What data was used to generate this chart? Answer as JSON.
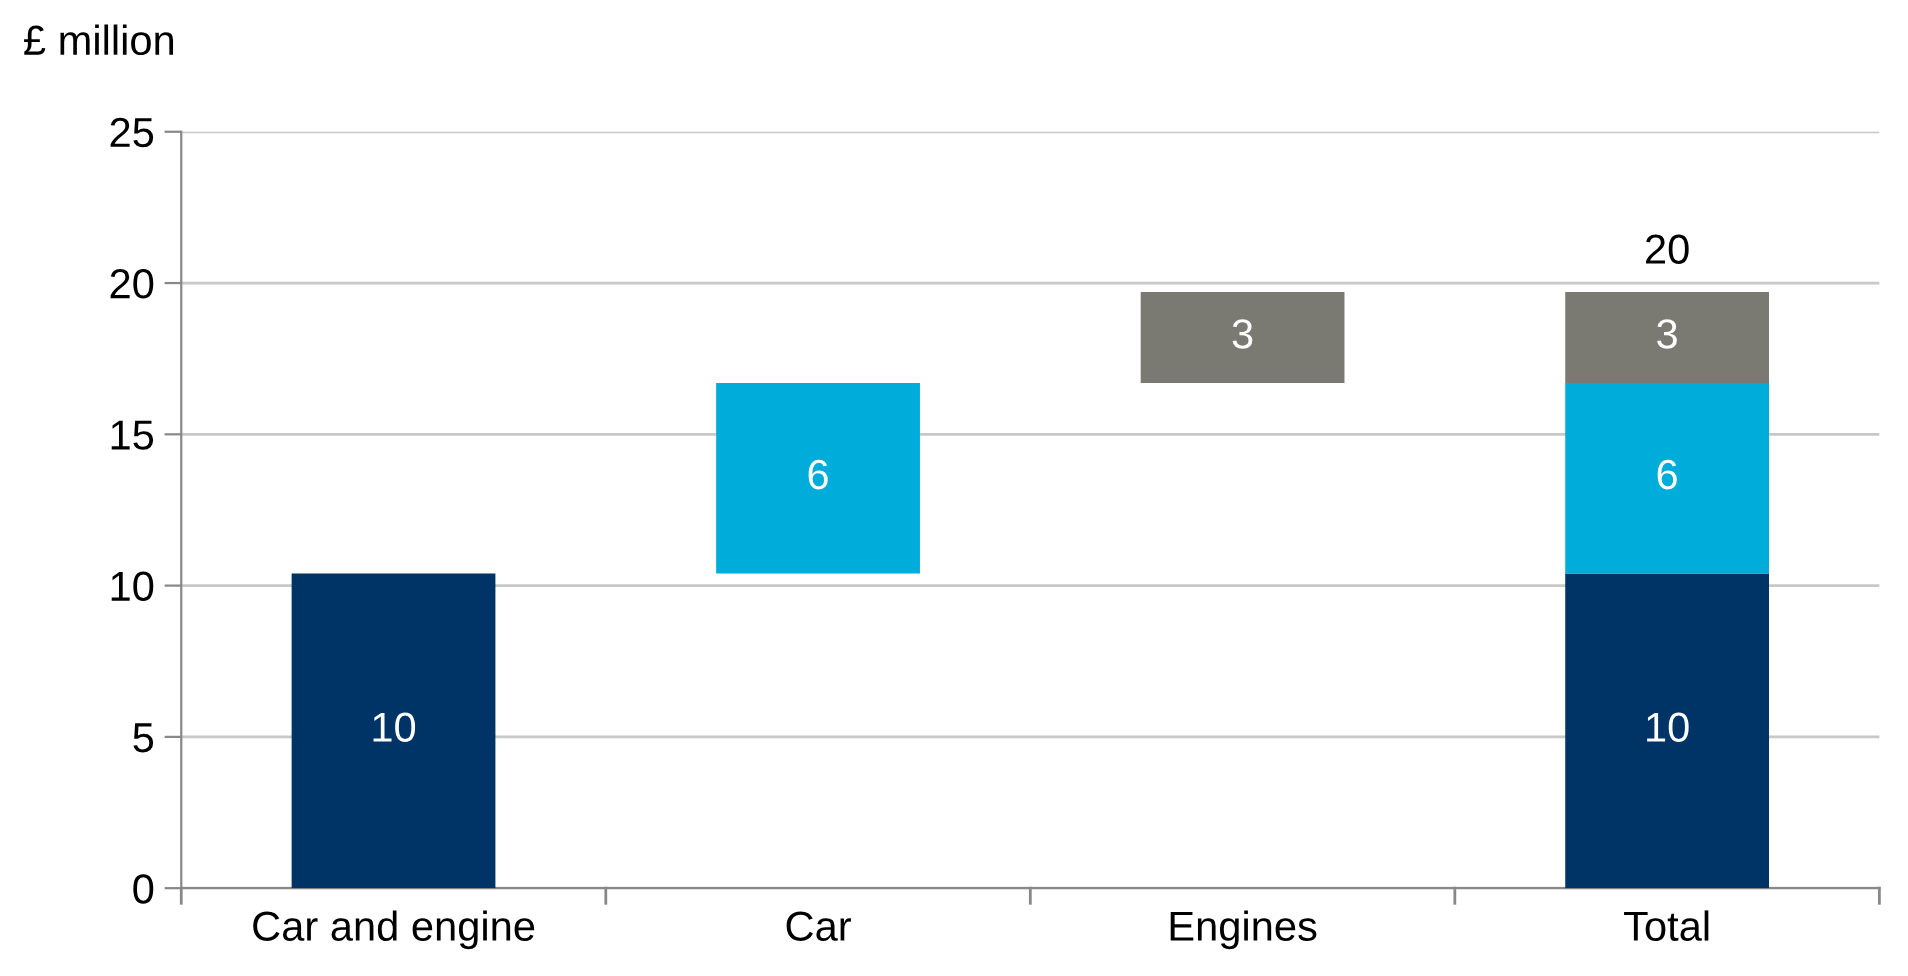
{
  "chart_data": {
    "type": "bar",
    "ylabel": "£ million",
    "categories": [
      "Car and engine",
      "Car",
      "Engines",
      "Total"
    ],
    "series": [
      {
        "color": "#003366",
        "values": [
          10.4,
          null,
          null,
          10.4
        ],
        "base": [
          0,
          null,
          null,
          0
        ],
        "value_labels": [
          "10",
          null,
          null,
          "10"
        ]
      },
      {
        "color": "#00acd9",
        "values": [
          null,
          6.3,
          null,
          6.3
        ],
        "base": [
          null,
          10.4,
          null,
          10.4
        ],
        "value_labels": [
          null,
          "6",
          null,
          "6"
        ]
      },
      {
        "color": "#7a7a73",
        "values": [
          null,
          null,
          3.0,
          3.0
        ],
        "base": [
          null,
          null,
          16.7,
          16.7
        ],
        "value_labels": [
          null,
          null,
          "3",
          "3"
        ]
      }
    ],
    "totals": [
      null,
      null,
      null,
      "20"
    ],
    "ylim": [
      0,
      25
    ],
    "yticks": [
      0,
      5,
      10,
      15,
      20,
      25
    ],
    "grid": "y",
    "legend": false
  }
}
